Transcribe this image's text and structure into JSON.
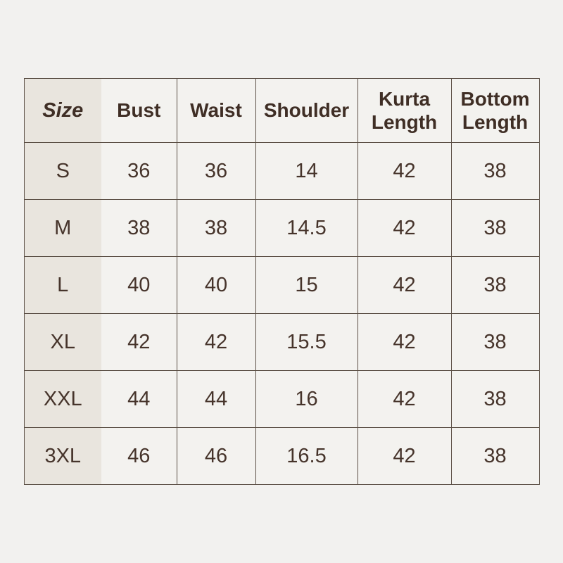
{
  "chart_data": {
    "type": "table",
    "columns": [
      "Size",
      "Bust",
      "Waist",
      "Shoulder",
      "Kurta Length",
      "Bottom Length"
    ],
    "rows": [
      [
        "S",
        "36",
        "36",
        "14",
        "42",
        "38"
      ],
      [
        "M",
        "38",
        "38",
        "14.5",
        "42",
        "38"
      ],
      [
        "L",
        "40",
        "40",
        "15",
        "42",
        "38"
      ],
      [
        "XL",
        "42",
        "42",
        "15.5",
        "42",
        "38"
      ],
      [
        "XXL",
        "44",
        "44",
        "16",
        "42",
        "38"
      ],
      [
        "3XL",
        "46",
        "46",
        "16.5",
        "42",
        "38"
      ]
    ]
  },
  "colors": {
    "page_background": "#f2f1ef",
    "cell_background": "#f3f2ef",
    "size_column_background": "#e9e5de",
    "grid_border": "#5a4e44",
    "text": "#46342b"
  }
}
